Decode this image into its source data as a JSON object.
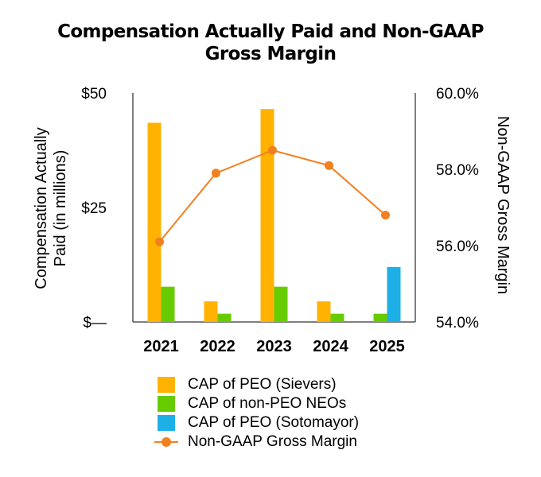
{
  "colors": {
    "peo_sievers": "#FFB300",
    "non_peo_neos": "#66CC00",
    "peo_sotomayor": "#1DB0E6",
    "gross_margin": "#F08020",
    "axis": "#555555"
  },
  "chart_data": {
    "type": "bar",
    "title_line1": "Compensation Actually Paid and Non-GAAP",
    "title_line2": "Gross Margin",
    "categories": [
      "2021",
      "2022",
      "2023",
      "2024",
      "2025"
    ],
    "ylabel_line1": "Compensation Actually",
    "ylabel_line2": "Paid (in millions)",
    "y2label": "Non-GAAP Gross Margin",
    "ylim": [
      0,
      50
    ],
    "y2lim": [
      54.0,
      60.0
    ],
    "yticks": [
      "$—",
      "$25",
      "$50"
    ],
    "y2ticks": [
      "54.0%",
      "56.0%",
      "58.0%",
      "60.0%"
    ],
    "series": [
      {
        "name": "CAP of PEO (Sievers)",
        "kind": "bar",
        "axis": "left",
        "values": [
          43.5,
          4.5,
          46.5,
          4.5,
          null
        ]
      },
      {
        "name": "CAP of non-PEO NEOs",
        "kind": "bar",
        "axis": "left",
        "values": [
          7.7,
          1.8,
          7.7,
          1.8,
          1.8
        ]
      },
      {
        "name": "CAP of PEO (Sotomayor)",
        "kind": "bar",
        "axis": "left",
        "values": [
          null,
          null,
          null,
          null,
          12.0
        ]
      },
      {
        "name": "Non-GAAP Gross Margin",
        "kind": "line",
        "axis": "right",
        "values": [
          56.1,
          57.9,
          58.5,
          58.1,
          56.8
        ]
      }
    ],
    "legend_position": "bottom",
    "grid": false
  }
}
